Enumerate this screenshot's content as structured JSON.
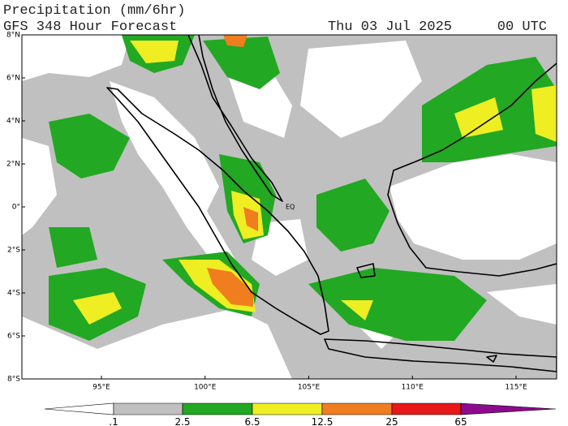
{
  "header": {
    "title": "Precipitation (mm/6hr)",
    "subtitle": "GFS 348 Hour Forecast",
    "date": "Thu 03 Jul 2025",
    "time": "00 UTC"
  },
  "map": {
    "lat_labels": [
      "8°N",
      "6°N",
      "4°N",
      "2°N",
      "0°",
      "2°S",
      "4°S",
      "6°S",
      "8°S"
    ],
    "lon_labels": [
      "95°E",
      "100°E",
      "105°E",
      "110°E",
      "115°E"
    ],
    "equator_label": "EQ"
  },
  "colorbar": {
    "labels": [
      ".1",
      "2.5",
      "6.5",
      "12.5",
      "25",
      "65"
    ],
    "colors": [
      "#ffffff",
      "#c0c0c0",
      "#22a822",
      "#eeee22",
      "#f07d1e",
      "#e81818",
      "#8c0a8c"
    ]
  }
}
